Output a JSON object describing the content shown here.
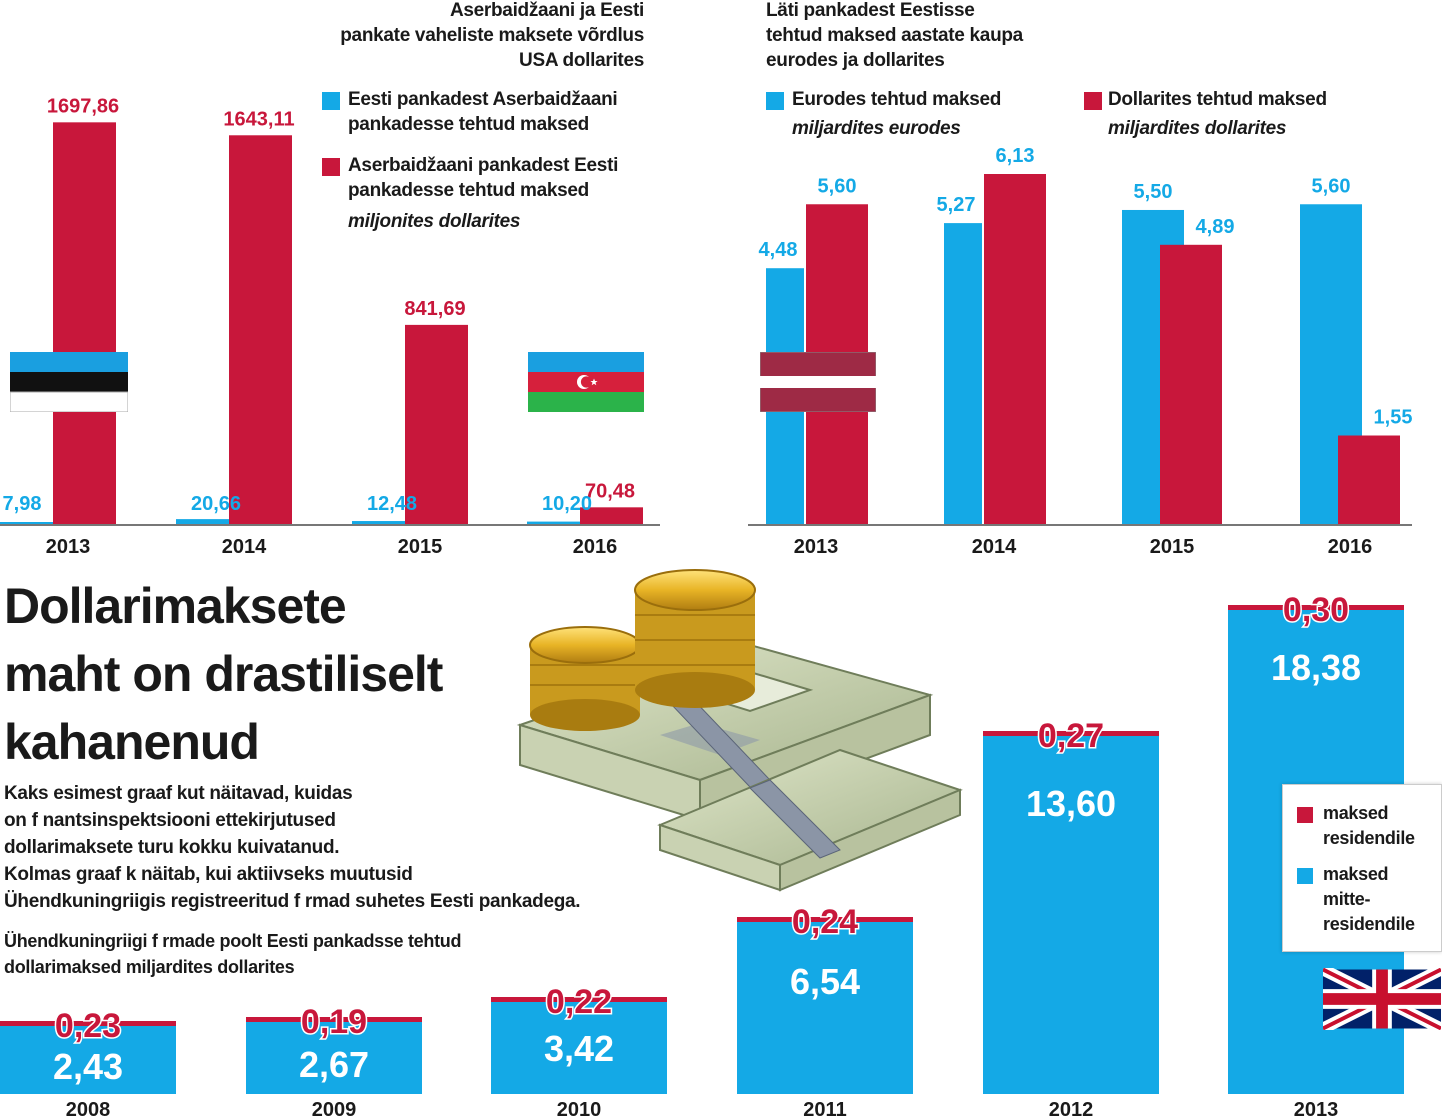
{
  "colors": {
    "blue": "#14a9e6",
    "red": "#c8173b",
    "axis": "#777777"
  },
  "chart1": {
    "title": [
      "Aserbaidžaani ja Eesti",
      "pankate vaheliste maksete võrdlus",
      "USA dollarites"
    ],
    "legend": {
      "blue": [
        "Eesti pankadest Aserbaidžaani",
        "pankadesse tehtud maksed"
      ],
      "red": [
        "Aserbaidžaani pankadest Eesti",
        "pankadesse tehtud maksed"
      ],
      "unit": "miljonites dollarites"
    }
  },
  "chart2": {
    "title": [
      "Läti pankadest Eestisse",
      "tehtud maksed aastate kaupa",
      "eurodes ja dollarites"
    ],
    "legend": {
      "blue": "Eurodes tehtud maksed",
      "blue_unit": "miljardites eurodes",
      "red": "Dollarites tehtud maksed",
      "red_unit": "miljardites dollarites"
    }
  },
  "chart3": {
    "headline": [
      "Dollarimaksete",
      "maht on drastiliselt",
      "kahanenud"
    ],
    "body": [
      "Kaks esimest graaf kut näitavad, kuidas",
      "on f nantsinspektsiooni ettekirjutused",
      "dollarimaksete turu kokku kuivatanud.",
      "Kolmas graaf k näitab, kui aktiivseks muutusid",
      "Ühendkuningriigis registreeritud f rmad suhetes Eesti pankadega."
    ],
    "caption": [
      "Ühendkuningriigi f rmade poolt Eesti pankadsse tehtud",
      "dollarimaksed miljardites dollarites"
    ],
    "legend": {
      "red": [
        "maksed",
        "residendile"
      ],
      "blue": [
        "maksed",
        "mitte-",
        "residendile"
      ]
    }
  },
  "chart_data": [
    {
      "type": "bar",
      "title": "Aserbaidžaani ja Eesti pankate vaheliste maksete võrdlus USA dollarites",
      "categories": [
        "2013",
        "2014",
        "2015",
        "2016"
      ],
      "series": [
        {
          "name": "Eesti pankadest Aserbaidžaani pankadesse tehtud maksed",
          "color": "#14a9e6",
          "values": [
            7.98,
            20.66,
            12.48,
            10.2
          ],
          "labels": [
            "7,98",
            "20,66",
            "12,48",
            "10,20"
          ]
        },
        {
          "name": "Aserbaidžaani pankadest Eesti pankadesse tehtud maksed",
          "color": "#c8173b",
          "values": [
            1697.86,
            1643.11,
            841.69,
            70.48
          ],
          "labels": [
            "1697,86",
            "1643,11",
            "841,69",
            "70,48"
          ]
        }
      ],
      "ylabel": "miljonites dollarites",
      "ylim": [
        0,
        1750
      ]
    },
    {
      "type": "bar",
      "title": "Läti pankadest Eestisse tehtud maksed aastate kaupa eurodes ja dollarites",
      "categories": [
        "2013",
        "2014",
        "2015",
        "2016"
      ],
      "series": [
        {
          "name": "Eurodes tehtud maksed",
          "color": "#14a9e6",
          "values": [
            4.48,
            5.27,
            5.5,
            5.6
          ],
          "labels": [
            "4,48",
            "5,27",
            "5,50",
            "5,60"
          ]
        },
        {
          "name": "Dollarites tehtud maksed",
          "color": "#c8173b",
          "values": [
            5.6,
            6.13,
            4.89,
            1.55
          ],
          "labels": [
            "5,60",
            "6,13",
            "4,89",
            "1,55"
          ]
        }
      ],
      "ylim": [
        0,
        6.13
      ]
    },
    {
      "type": "bar",
      "stacked": true,
      "title": "Ühendkuningriigi f rmade poolt Eesti pankadsse tehtud dollarimaksed miljardites dollarites",
      "categories": [
        "2008",
        "2009",
        "2010",
        "2011",
        "2012",
        "2013"
      ],
      "series": [
        {
          "name": "maksed mitte-residendile",
          "color": "#14a9e6",
          "values": [
            2.43,
            2.67,
            3.42,
            6.54,
            13.6,
            18.38
          ],
          "labels": [
            "2,43",
            "2,67",
            "3,42",
            "6,54",
            "13,60",
            "18,38"
          ]
        },
        {
          "name": "maksed residendile",
          "color": "#c8173b",
          "values": [
            0.23,
            0.19,
            0.22,
            0.24,
            0.27,
            0.3
          ],
          "labels": [
            "0,23",
            "0,19",
            "0,22",
            "0,24",
            "0,27",
            "0,30"
          ]
        }
      ]
    }
  ]
}
